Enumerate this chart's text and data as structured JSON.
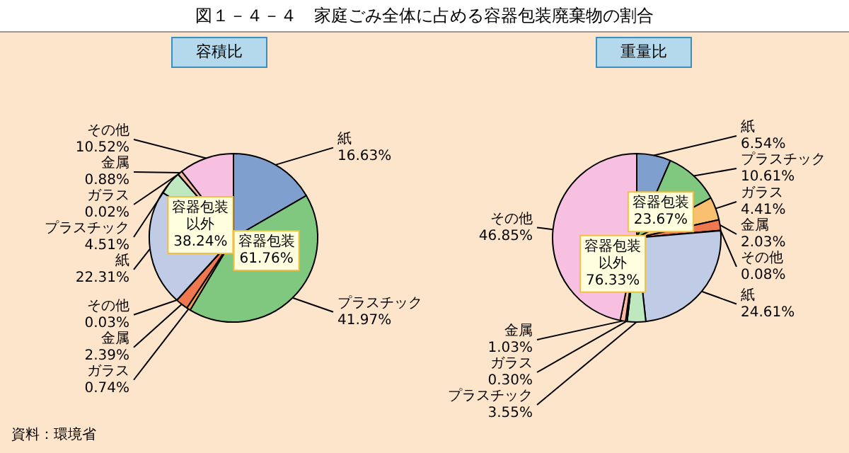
{
  "chart_data": [
    {
      "type": "pie",
      "title": "図１－４－４　家庭ごみ全体に占める容器包装廃棄物の割合",
      "subtitle": "容積比",
      "legend": false,
      "categories": [
        "紙",
        "プラスチック",
        "ガラス",
        "金属",
        "その他",
        "紙",
        "プラスチック",
        "ガラス",
        "金属",
        "その他"
      ],
      "values": [
        16.63,
        41.97,
        0.74,
        2.39,
        0.03,
        22.31,
        4.51,
        0.02,
        0.88,
        10.52
      ],
      "value_labels": [
        "16.63%",
        "41.97%",
        "0.74%",
        "2.39%",
        "0.03%",
        "22.31%",
        "4.51%",
        "0.02%",
        "0.88%",
        "10.52%"
      ],
      "colors": [
        "#7f9fcf",
        "#80c880",
        "#f0a050",
        "#f07850",
        "#e8d070",
        "#c0cce6",
        "#c0e8c0",
        "#f8c8a0",
        "#f8b8a0",
        "#f8c0e0"
      ],
      "annotations": [
        "容器包装\n61.76%",
        "容器包装以外\n38.24%",
        "資料：環境省"
      ]
    },
    {
      "type": "pie",
      "subtitle": "重量比",
      "legend": false,
      "categories": [
        "紙",
        "プラスチック",
        "ガラス",
        "金属",
        "その他",
        "紙",
        "プラスチック",
        "ガラス",
        "金属",
        "その他"
      ],
      "values": [
        6.54,
        10.61,
        4.41,
        2.03,
        0.08,
        24.61,
        3.55,
        0.3,
        1.03,
        46.85
      ],
      "value_labels": [
        "6.54%",
        "10.61%",
        "4.41%",
        "2.03%",
        "0.08%",
        "24.61%",
        "3.55%",
        "0.30%",
        "1.03%",
        "46.85%"
      ],
      "colors": [
        "#7f9fcf",
        "#80c880",
        "#f8c070",
        "#f07850",
        "#e8d070",
        "#c0cce6",
        "#c0e8c0",
        "#f8c8a0",
        "#f8b8a0",
        "#f8c0e0"
      ],
      "annotations": [
        "容器包装\n23.67%",
        "容器包装以外\n76.33%"
      ]
    }
  ]
}
